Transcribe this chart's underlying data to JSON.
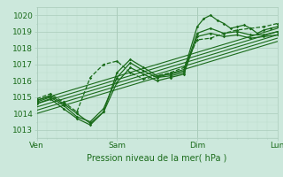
{
  "title": "",
  "xlabel": "Pression niveau de la mer( hPa )",
  "ylabel": "",
  "xlim": [
    0,
    72
  ],
  "ylim": [
    1012.5,
    1020.5
  ],
  "yticks": [
    1013,
    1014,
    1015,
    1016,
    1017,
    1018,
    1019,
    1020
  ],
  "xtick_positions": [
    0,
    24,
    48,
    72
  ],
  "xtick_labels": [
    "Ven",
    "Sam",
    "Dim",
    "Lun"
  ],
  "background_color": "#cce8dc",
  "grid_major_color": "#aaccbb",
  "grid_minor_color": "#bbddcc",
  "line_color": "#1a6b1a",
  "figsize": [
    3.2,
    2.0
  ],
  "dpi": 100,
  "series": [
    {
      "x": [
        0,
        4,
        8,
        12,
        16,
        20,
        24,
        28,
        32,
        36,
        40,
        44,
        48,
        50,
        52,
        54,
        56,
        58,
        60,
        62,
        64,
        66,
        68,
        70,
        72
      ],
      "y": [
        1014.8,
        1015.1,
        1014.6,
        1014.0,
        1013.4,
        1014.1,
        1016.5,
        1017.3,
        1016.8,
        1016.3,
        1016.4,
        1016.6,
        1019.3,
        1019.8,
        1020.0,
        1019.7,
        1019.5,
        1019.2,
        1019.3,
        1019.4,
        1019.2,
        1018.9,
        1019.1,
        1019.2,
        1019.3
      ],
      "style": "solid",
      "marker": "D",
      "markersize": 1.8,
      "linewidth": 0.9
    },
    {
      "x": [
        0,
        4,
        8,
        12,
        16,
        20,
        24,
        28,
        32,
        36,
        40,
        44,
        48,
        52,
        56,
        60,
        64,
        68,
        72
      ],
      "y": [
        1014.7,
        1015.0,
        1014.5,
        1013.8,
        1013.5,
        1014.3,
        1016.2,
        1017.1,
        1016.6,
        1016.2,
        1016.3,
        1016.5,
        1018.9,
        1019.2,
        1018.9,
        1019.0,
        1018.8,
        1018.8,
        1019.0
      ],
      "style": "solid",
      "marker": "D",
      "markersize": 1.8,
      "linewidth": 0.9
    },
    {
      "x": [
        0,
        4,
        8,
        12,
        16,
        20,
        24,
        28,
        32,
        36,
        40,
        44,
        48,
        52,
        56,
        60,
        64,
        68,
        72
      ],
      "y": [
        1014.6,
        1014.9,
        1014.3,
        1013.7,
        1013.3,
        1014.1,
        1015.9,
        1016.8,
        1016.4,
        1016.0,
        1016.2,
        1016.4,
        1018.7,
        1018.9,
        1018.7,
        1018.8,
        1018.6,
        1018.7,
        1018.8
      ],
      "style": "solid",
      "marker": "D",
      "markersize": 1.8,
      "linewidth": 0.9
    },
    {
      "x": [
        0,
        72
      ],
      "y": [
        1014.8,
        1019.2
      ],
      "style": "solid",
      "marker": null,
      "markersize": 0,
      "linewidth": 0.8
    },
    {
      "x": [
        0,
        72
      ],
      "y": [
        1014.6,
        1019.0
      ],
      "style": "solid",
      "marker": null,
      "markersize": 0,
      "linewidth": 0.8
    },
    {
      "x": [
        0,
        72
      ],
      "y": [
        1014.4,
        1018.8
      ],
      "style": "solid",
      "marker": null,
      "markersize": 0,
      "linewidth": 0.8
    },
    {
      "x": [
        0,
        72
      ],
      "y": [
        1014.2,
        1018.6
      ],
      "style": "solid",
      "marker": null,
      "markersize": 0,
      "linewidth": 0.8
    },
    {
      "x": [
        0,
        72
      ],
      "y": [
        1014.0,
        1018.4
      ],
      "style": "solid",
      "marker": null,
      "markersize": 0,
      "linewidth": 0.8
    },
    {
      "x": [
        0,
        4,
        8,
        12,
        16,
        20,
        24,
        28,
        32,
        36,
        40,
        44,
        48,
        52,
        56,
        60,
        64,
        68,
        72
      ],
      "y": [
        1014.9,
        1015.2,
        1014.7,
        1014.1,
        1016.2,
        1017.0,
        1017.2,
        1016.5,
        1016.1,
        1016.3,
        1016.5,
        1016.8,
        1018.5,
        1018.6,
        1018.9,
        1019.1,
        1019.2,
        1019.3,
        1019.5
      ],
      "style": "dashed",
      "marker": "D",
      "markersize": 1.8,
      "linewidth": 0.9
    }
  ]
}
